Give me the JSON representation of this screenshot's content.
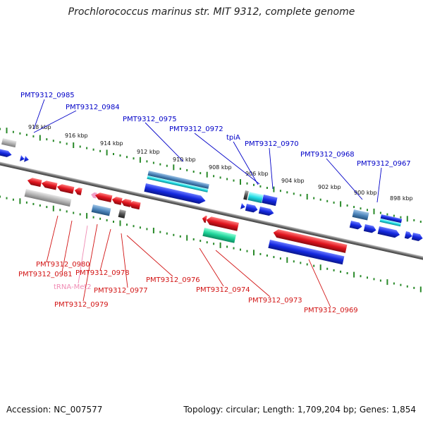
{
  "title": "Prochlorococcus marinus str. MIT 9312, complete genome",
  "footer": {
    "accession": "Accession: NC_007577",
    "topology": "Topology: circular; Length: 1,709,204 bp; Genes: 1,854"
  },
  "colors": {
    "forward_cds": "#1428e0",
    "reverse_cds": "#e0141e",
    "top_label": "#0000c8",
    "bottom_label": "#d21414",
    "trna_label": "#f08cb4",
    "backbone": "#7a7a7a",
    "tick": "#2a8a2a"
  },
  "scale_labels": [
    "918 kbp",
    "916 kbp",
    "914 kbp",
    "912 kbp",
    "910 kbp",
    "908 kbp",
    "906 kbp",
    "904 kbp",
    "902 kbp",
    "900 kbp",
    "898 kbp"
  ],
  "top_genes": [
    "PMT9312_0985",
    "PMT9312_0984",
    "PMT9312_0975",
    "PMT9312_0972",
    "tpiA",
    "PMT9312_0970",
    "PMT9312_0968",
    "PMT9312_0967"
  ],
  "bottom_genes": [
    "PMT9312_0980",
    "PMT9312_0981",
    "PMT9312_0978",
    "tRNA-Met2",
    "PMT9312_0977",
    "PMT9312_0979",
    "PMT9312_0976",
    "PMT9312_0974",
    "PMT9312_0973",
    "PMT9312_0969"
  ]
}
